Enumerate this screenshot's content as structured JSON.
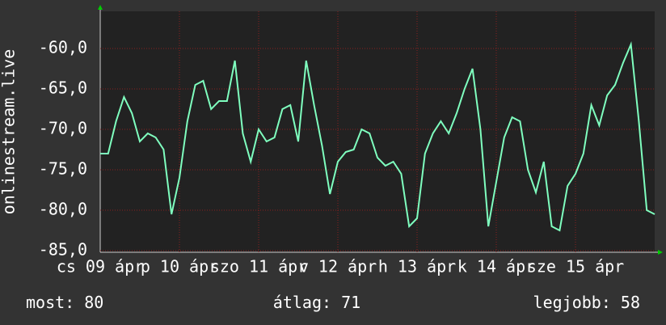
{
  "chart_data": {
    "type": "line",
    "ylabel": "onlinestream.live",
    "xlim": [
      0,
      7
    ],
    "xticks": [
      {
        "value": 0,
        "label": "cs 09 ápr"
      },
      {
        "value": 1,
        "label": "p 10 ápr"
      },
      {
        "value": 2,
        "label": "szo 11 ápr"
      },
      {
        "value": 3,
        "label": "v 12 ápr"
      },
      {
        "value": 4,
        "label": "h 13 ápr"
      },
      {
        "value": 5,
        "label": "k 14 ápr"
      },
      {
        "value": 6,
        "label": "sze 15 ápr"
      }
    ],
    "ylim": [
      -85.2,
      -55.4
    ],
    "yticks": [
      {
        "value": -85,
        "label": "-85,0"
      },
      {
        "value": -80,
        "label": "-80,0"
      },
      {
        "value": -75,
        "label": "-75,0"
      },
      {
        "value": -70,
        "label": "-70,0"
      },
      {
        "value": -65,
        "label": "-65,0"
      },
      {
        "value": -60,
        "label": "-60,0"
      }
    ],
    "grid": true,
    "series": [
      {
        "color": "#7fffbf",
        "x": [
          0,
          0.1,
          0.2,
          0.3,
          0.4,
          0.5,
          0.6,
          0.7,
          0.8,
          0.9,
          1,
          1.1,
          1.2,
          1.3,
          1.4,
          1.5,
          1.6,
          1.7,
          1.8,
          1.9,
          2,
          2.1,
          2.2,
          2.3,
          2.4,
          2.5,
          2.6,
          2.7,
          2.8,
          2.9,
          3,
          3.1,
          3.2,
          3.3,
          3.4,
          3.5,
          3.6,
          3.7,
          3.8,
          3.9,
          4,
          4.1,
          4.2,
          4.3,
          4.4,
          4.5,
          4.6,
          4.7,
          4.8,
          4.9,
          5,
          5.1,
          5.2,
          5.3,
          5.4,
          5.5,
          5.6,
          5.7,
          5.8,
          5.9,
          6,
          6.1,
          6.2,
          6.3,
          6.4,
          6.5,
          6.6,
          6.7,
          6.8,
          6.9,
          7
        ],
        "values": [
          -73,
          -73,
          -69,
          -66,
          -68,
          -71.5,
          -70.5,
          -71,
          -72.5,
          -80.5,
          -76,
          -69,
          -64.5,
          -64,
          -67.5,
          -66.5,
          -66.5,
          -61.5,
          -70.5,
          -74,
          -70,
          -71.5,
          -71,
          -67.5,
          -67,
          -71.5,
          -61.5,
          -67,
          -72,
          -78,
          -74,
          -72.8,
          -72.5,
          -70,
          -70.5,
          -73.5,
          -74.5,
          -74,
          -75.5,
          -82,
          -81,
          -73,
          -70.5,
          -69,
          -70.5,
          -68,
          -65,
          -62.5,
          -70,
          -82,
          -76.5,
          -71,
          -68.5,
          -69,
          -75,
          -77.8,
          -74,
          -82,
          -82.5,
          -77,
          -75.5,
          -73,
          -67,
          -69.5,
          -65.8,
          -64.5,
          -61.8,
          -59.5,
          -69,
          -80,
          -80.5
        ]
      }
    ],
    "stats": [
      {
        "label": "most:",
        "value": 80
      },
      {
        "label": "átlag:",
        "value": 71
      },
      {
        "label": "legjobb:",
        "value": 58
      }
    ]
  }
}
